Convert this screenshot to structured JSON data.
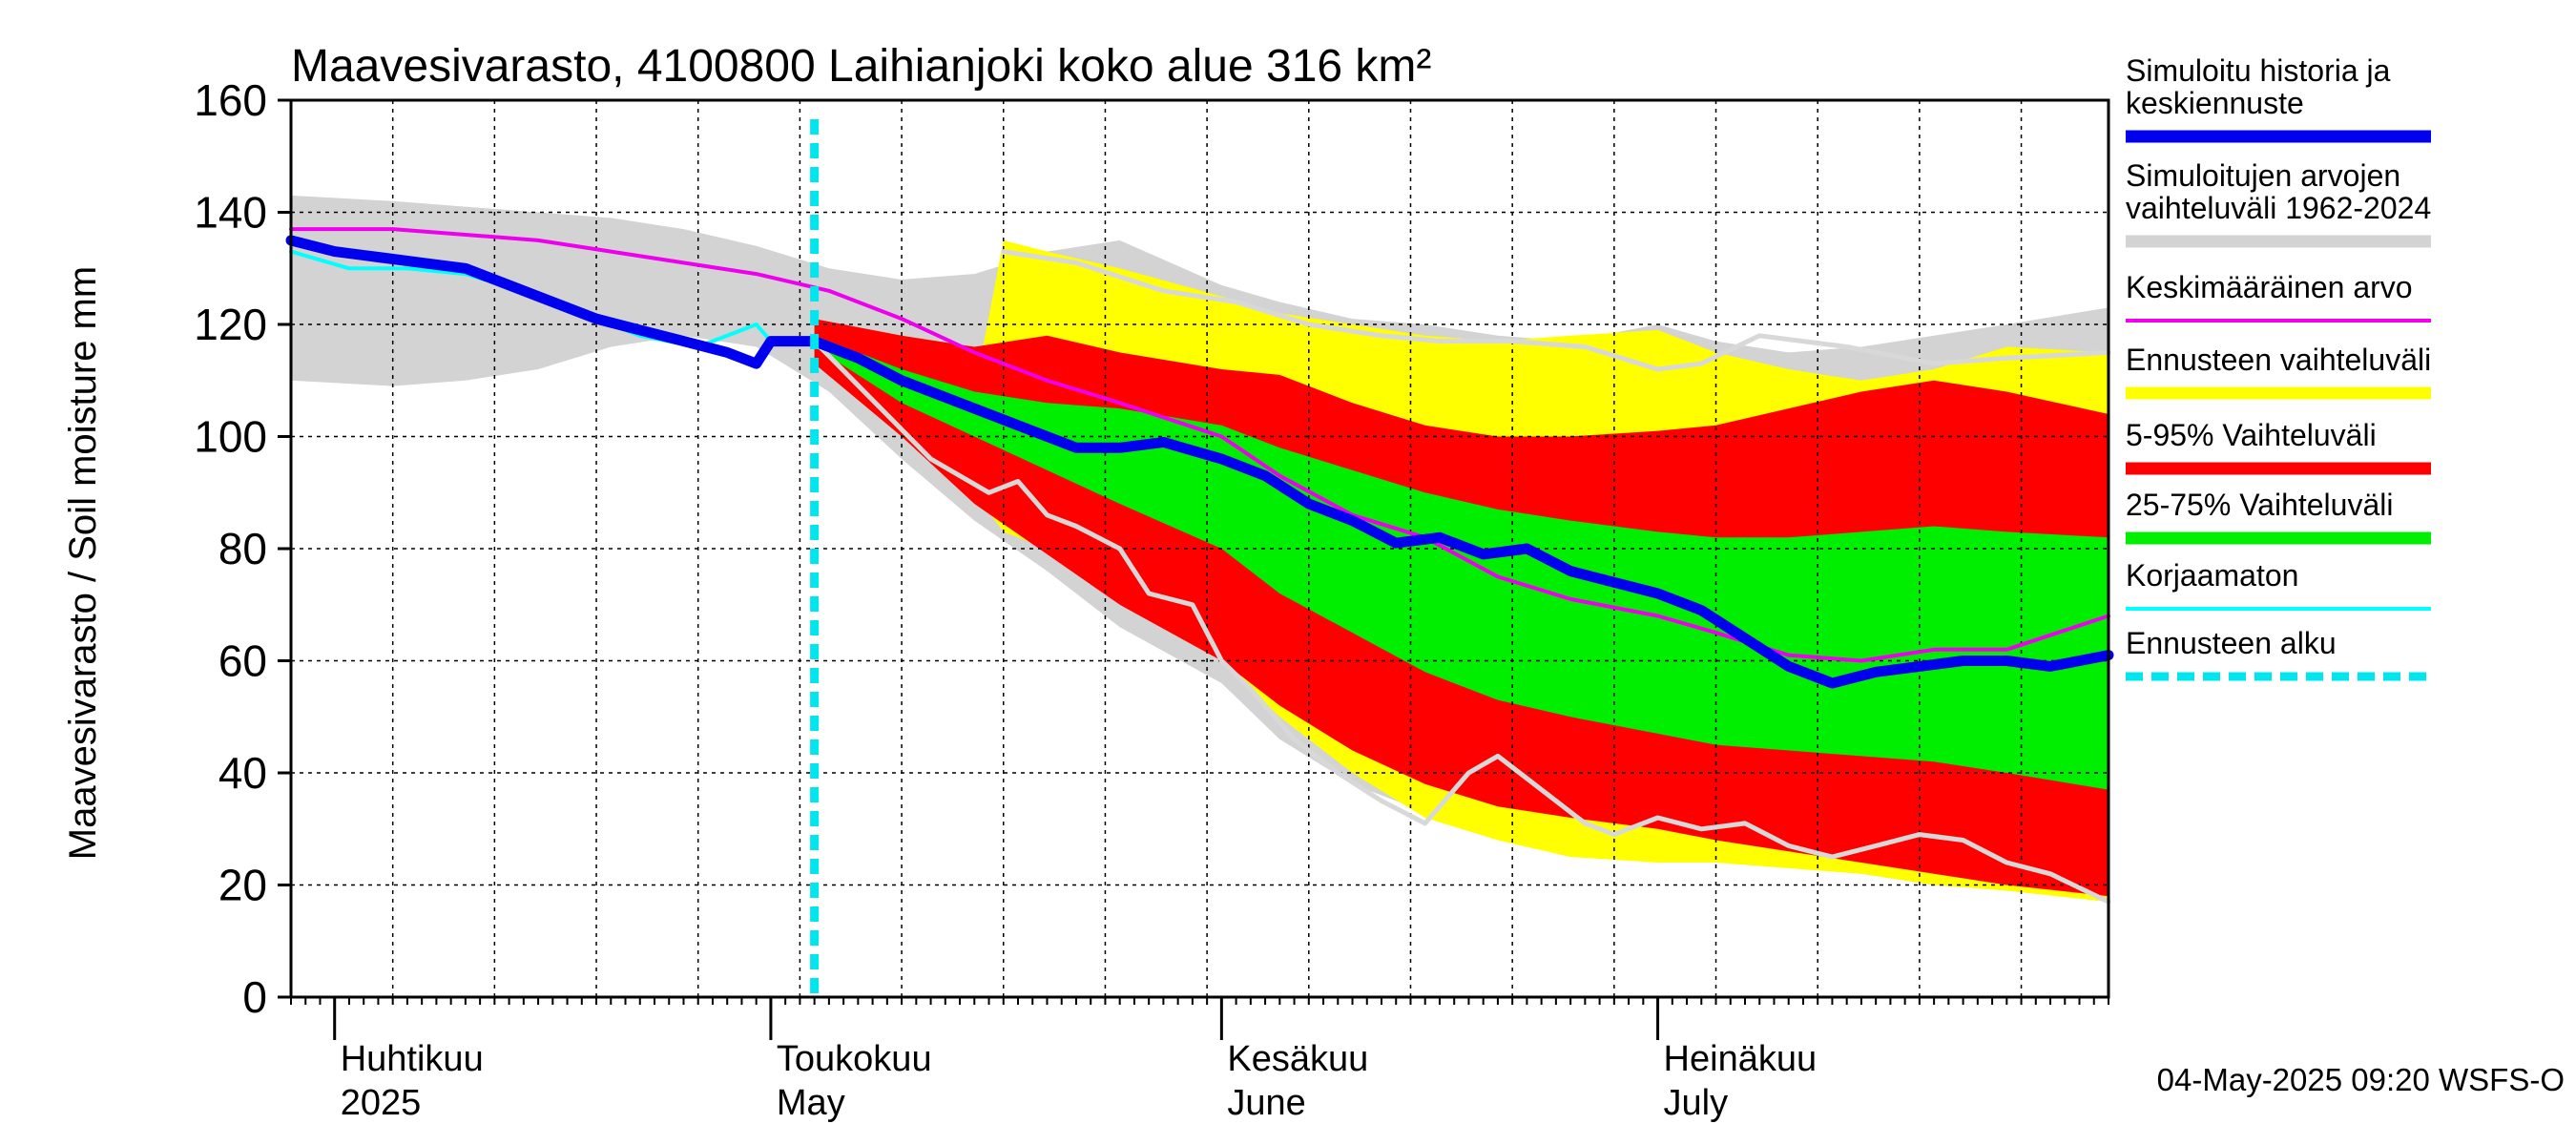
{
  "chart_data": {
    "type": "area",
    "title": "Maavesivarasto, 4100800 Laihianjoki koko alue 316 km²",
    "ylabel": "Maavesivarasto / Soil moisture   mm",
    "ylim": [
      0,
      160
    ],
    "yticks": [
      0,
      20,
      40,
      60,
      80,
      100,
      120,
      140,
      160
    ],
    "x_start": "2025-03-29",
    "x_end": "2025-08-01",
    "forecast_start": "2025-05-04",
    "month_labels": [
      {
        "fi": "Huhtikuu",
        "en": "2025",
        "date": "2025-04-01"
      },
      {
        "fi": "Toukokuu",
        "en": "May",
        "date": "2025-05-01"
      },
      {
        "fi": "Kesäkuu",
        "en": "June",
        "date": "2025-06-01"
      },
      {
        "fi": "Heinäkuu",
        "en": "July",
        "date": "2025-07-01"
      }
    ],
    "footer": "04-May-2025 09:20 WSFS-O",
    "colors": {
      "sim": "#0000ee",
      "hist_range": "#d3d3d3",
      "mean": "#ee00ee",
      "forecast_range": "#ffff00",
      "p5_95": "#ff0000",
      "p25_75": "#00ee00",
      "uncorrected": "#00ffff",
      "forecast_start": "#00e5ee",
      "reference_line": "#d8d8d8"
    },
    "legend": [
      {
        "label": "Simuloitu historia ja keskiennuste",
        "lines": [
          "Simuloitu historia ja",
          "keskiennuste"
        ],
        "color": "#0000ee",
        "style": "thick"
      },
      {
        "label": "Simuloitujen arvojen vaihteluväli 1962-2024",
        "lines": [
          "Simuloitujen arvojen",
          "vaihteluväli 1962-2024"
        ],
        "color": "#d3d3d3",
        "style": "thick"
      },
      {
        "label": "Keskimääräinen arvo",
        "lines": [
          "Keskimääräinen arvo"
        ],
        "color": "#ee00ee",
        "style": "thin"
      },
      {
        "label": "Ennusteen vaihteluväli",
        "lines": [
          "Ennusteen vaihteluväli"
        ],
        "color": "#ffff00",
        "style": "thick"
      },
      {
        "label": "5-95% Vaihteluväli",
        "lines": [
          "5-95% Vaihteluväli"
        ],
        "color": "#ff0000",
        "style": "thick"
      },
      {
        "label": "25-75% Vaihteluväli",
        "lines": [
          "25-75% Vaihteluväli"
        ],
        "color": "#00ee00",
        "style": "thick"
      },
      {
        "label": "Korjaamaton",
        "lines": [
          "Korjaamaton"
        ],
        "color": "#00ffff",
        "style": "thin"
      },
      {
        "label": "Ennusteen alku",
        "lines": [
          "Ennusteen alku"
        ],
        "color": "#00e5ee",
        "style": "dashed"
      }
    ],
    "series": {
      "hist_range": {
        "dates": [
          "2025-03-29",
          "2025-04-05",
          "2025-04-10",
          "2025-04-15",
          "2025-04-20",
          "2025-04-25",
          "2025-04-30",
          "2025-05-05",
          "2025-05-10",
          "2025-05-15",
          "2025-05-20",
          "2025-05-25",
          "2025-06-01",
          "2025-06-05",
          "2025-06-10",
          "2025-06-15",
          "2025-06-20",
          "2025-06-25",
          "2025-07-01",
          "2025-07-05",
          "2025-07-10",
          "2025-07-15",
          "2025-07-20",
          "2025-07-25",
          "2025-08-01"
        ],
        "upper": [
          143,
          142,
          141,
          140,
          139,
          137,
          134,
          130,
          128,
          129,
          133,
          135,
          127,
          124,
          121,
          120,
          118,
          117,
          120,
          117,
          115,
          116,
          118,
          120,
          123
        ],
        "lower": [
          110,
          109,
          110,
          112,
          116,
          118,
          116,
          108,
          96,
          85,
          76,
          66,
          56,
          46,
          38,
          33,
          32,
          31,
          30,
          27,
          24,
          22,
          20,
          19,
          17
        ]
      },
      "forecast_range": {
        "dates": [
          "2025-05-04",
          "2025-05-08",
          "2025-05-12",
          "2025-05-15",
          "2025-05-17",
          "2025-05-20",
          "2025-05-25",
          "2025-06-01",
          "2025-06-05",
          "2025-06-10",
          "2025-06-15",
          "2025-06-20",
          "2025-06-25",
          "2025-07-01",
          "2025-07-05",
          "2025-07-10",
          "2025-07-15",
          "2025-07-20",
          "2025-07-25",
          "2025-08-01"
        ],
        "upper": [
          120,
          118,
          114,
          108,
          135,
          133,
          130,
          125,
          122,
          120,
          118,
          117,
          118,
          119,
          115,
          112,
          110,
          112,
          116,
          115
        ],
        "lower": [
          117,
          108,
          100,
          90,
          83,
          80,
          72,
          60,
          50,
          40,
          32,
          28,
          25,
          24,
          24,
          23,
          22,
          20,
          19,
          17
        ]
      },
      "p5_95": {
        "dates": [
          "2025-05-04",
          "2025-05-10",
          "2025-05-15",
          "2025-05-20",
          "2025-05-25",
          "2025-06-01",
          "2025-06-05",
          "2025-06-10",
          "2025-06-15",
          "2025-06-20",
          "2025-06-25",
          "2025-07-01",
          "2025-07-05",
          "2025-07-10",
          "2025-07-15",
          "2025-07-20",
          "2025-07-25",
          "2025-08-01"
        ],
        "upper": [
          121,
          118,
          116,
          118,
          115,
          112,
          111,
          106,
          102,
          100,
          100,
          101,
          102,
          105,
          108,
          110,
          108,
          104
        ],
        "lower": [
          113,
          100,
          88,
          79,
          70,
          60,
          52,
          44,
          38,
          34,
          32,
          30,
          28,
          26,
          24,
          22,
          20,
          18
        ]
      },
      "p25_75": {
        "dates": [
          "2025-05-04",
          "2025-05-10",
          "2025-05-15",
          "2025-05-20",
          "2025-05-25",
          "2025-06-01",
          "2025-06-05",
          "2025-06-10",
          "2025-06-15",
          "2025-06-20",
          "2025-06-25",
          "2025-07-01",
          "2025-07-05",
          "2025-07-10",
          "2025-07-15",
          "2025-07-20",
          "2025-07-25",
          "2025-08-01"
        ],
        "upper": [
          118,
          112,
          108,
          106,
          105,
          102,
          98,
          94,
          90,
          87,
          85,
          83,
          82,
          82,
          83,
          84,
          83,
          82
        ],
        "lower": [
          116,
          106,
          100,
          94,
          88,
          80,
          72,
          65,
          58,
          53,
          50,
          47,
          45,
          44,
          43,
          42,
          40,
          37
        ]
      },
      "sim": {
        "dates": [
          "2025-03-29",
          "2025-04-01",
          "2025-04-04",
          "2025-04-07",
          "2025-04-10",
          "2025-04-13",
          "2025-04-16",
          "2025-04-19",
          "2025-04-22",
          "2025-04-25",
          "2025-04-28",
          "2025-04-30",
          "2025-05-01",
          "2025-05-04",
          "2025-05-07",
          "2025-05-10",
          "2025-05-13",
          "2025-05-16",
          "2025-05-19",
          "2025-05-22",
          "2025-05-25",
          "2025-05-28",
          "2025-06-01",
          "2025-06-04",
          "2025-06-07",
          "2025-06-10",
          "2025-06-13",
          "2025-06-16",
          "2025-06-19",
          "2025-06-22",
          "2025-06-25",
          "2025-06-28",
          "2025-07-01",
          "2025-07-04",
          "2025-07-07",
          "2025-07-10",
          "2025-07-13",
          "2025-07-16",
          "2025-07-19",
          "2025-07-22",
          "2025-07-25",
          "2025-07-28",
          "2025-08-01"
        ],
        "values": [
          135,
          133,
          132,
          131,
          130,
          127,
          124,
          121,
          119,
          117,
          115,
          113,
          117,
          117,
          114,
          110,
          107,
          104,
          101,
          98,
          98,
          99,
          96,
          93,
          88,
          85,
          81,
          82,
          79,
          80,
          76,
          74,
          72,
          69,
          64,
          59,
          56,
          58,
          59,
          60,
          60,
          59,
          61
        ]
      },
      "mean": {
        "dates": [
          "2025-03-29",
          "2025-04-05",
          "2025-04-10",
          "2025-04-15",
          "2025-04-20",
          "2025-04-25",
          "2025-04-30",
          "2025-05-05",
          "2025-05-10",
          "2025-05-15",
          "2025-05-20",
          "2025-05-25",
          "2025-06-01",
          "2025-06-05",
          "2025-06-10",
          "2025-06-15",
          "2025-06-20",
          "2025-06-25",
          "2025-07-01",
          "2025-07-05",
          "2025-07-10",
          "2025-07-15",
          "2025-07-20",
          "2025-07-25",
          "2025-08-01"
        ],
        "values": [
          137,
          137,
          136,
          135,
          133,
          131,
          129,
          126,
          121,
          115,
          110,
          106,
          100,
          93,
          86,
          82,
          75,
          71,
          68,
          65,
          61,
          60,
          62,
          62,
          68
        ]
      },
      "uncorrected": {
        "dates": [
          "2025-03-29",
          "2025-04-02",
          "2025-04-06",
          "2025-04-10",
          "2025-04-14",
          "2025-04-18",
          "2025-04-22",
          "2025-04-26",
          "2025-04-30",
          "2025-05-01",
          "2025-05-03"
        ],
        "values": [
          133,
          130,
          130,
          129,
          126,
          122,
          118,
          116,
          120,
          117,
          117
        ]
      },
      "reference": {
        "dates": [
          "2025-05-04",
          "2025-05-12",
          "2025-05-16",
          "2025-05-18",
          "2025-05-20",
          "2025-05-22",
          "2025-05-25",
          "2025-05-27",
          "2025-05-30",
          "2025-06-01",
          "2025-06-03",
          "2025-06-06",
          "2025-06-09",
          "2025-06-12",
          "2025-06-15",
          "2025-06-18",
          "2025-06-20",
          "2025-06-22",
          "2025-06-24",
          "2025-06-26",
          "2025-06-28",
          "2025-07-01",
          "2025-07-04",
          "2025-07-07",
          "2025-07-10",
          "2025-07-13",
          "2025-07-16",
          "2025-07-19",
          "2025-07-22",
          "2025-07-25",
          "2025-07-28",
          "2025-08-01"
        ],
        "values": [
          117,
          96,
          90,
          92,
          86,
          84,
          80,
          72,
          70,
          60,
          55,
          46,
          40,
          35,
          31,
          40,
          43,
          39,
          35,
          31,
          29,
          32,
          30,
          31,
          27,
          25,
          27,
          29,
          28,
          24,
          22,
          17
        ]
      },
      "reference_upper": {
        "dates": [
          "2025-05-17",
          "2025-05-22",
          "2025-05-28",
          "2025-06-02",
          "2025-06-07",
          "2025-06-12",
          "2025-06-16",
          "2025-06-21",
          "2025-06-26",
          "2025-07-01",
          "2025-07-04",
          "2025-07-08",
          "2025-07-14",
          "2025-07-20",
          "2025-07-25",
          "2025-08-01"
        ],
        "values": [
          133,
          131,
          126,
          124,
          120,
          118,
          117,
          117,
          116,
          112,
          113,
          118,
          116,
          113,
          114,
          115
        ]
      }
    }
  }
}
